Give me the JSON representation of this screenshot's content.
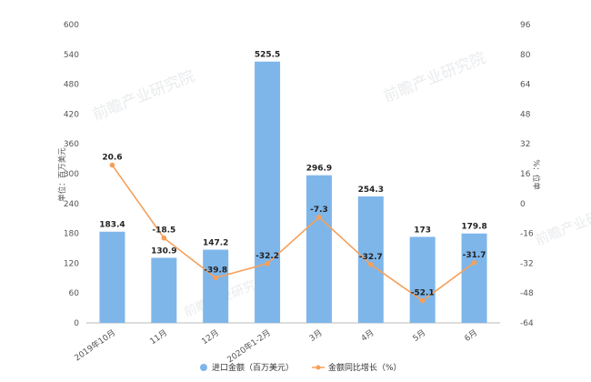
{
  "chart_data": {
    "type": "bar+line",
    "categories": [
      "2019年10月",
      "11月",
      "12月",
      "2020年1-2月",
      "3月",
      "4月",
      "5月",
      "6月"
    ],
    "series": [
      {
        "name": "进口金额（百万美元）",
        "type": "bar",
        "axis": "left",
        "color": "#7eb6ea",
        "values": [
          183.4,
          130.9,
          147.2,
          525.5,
          296.9,
          254.3,
          173,
          179.8
        ],
        "labels": [
          "183.4",
          "130.9",
          "147.2",
          "525.5",
          "296.9",
          "254.3",
          "173",
          "179.8"
        ]
      },
      {
        "name": "金额同比增长（%）",
        "type": "line",
        "axis": "right",
        "color": "#f5a05a",
        "values": [
          20.6,
          -18.5,
          -39.8,
          -32.2,
          -7.3,
          -32.7,
          -52.1,
          -31.7
        ],
        "labels": [
          "20.6",
          "-18.5",
          "-39.8",
          "-32.2",
          "-7.3",
          "-32.7",
          "-52.1",
          "-31.7"
        ]
      }
    ],
    "ylabel_left": "单位：百万美元",
    "ylabel_right": "%：位单",
    "ylim_left": [
      0,
      600
    ],
    "yticks_left": [
      "0",
      "60",
      "120",
      "180",
      "240",
      "300",
      "360",
      "420",
      "480",
      "540",
      "600"
    ],
    "ylim_right": [
      -64,
      96
    ],
    "yticks_right": [
      "-64",
      "-48",
      "-32",
      "-16",
      "0",
      "16",
      "32",
      "48",
      "64",
      "80",
      "96"
    ],
    "grid": false,
    "legend_position": "bottom-center"
  },
  "watermark": {
    "text": "前瞻产业研究院"
  }
}
